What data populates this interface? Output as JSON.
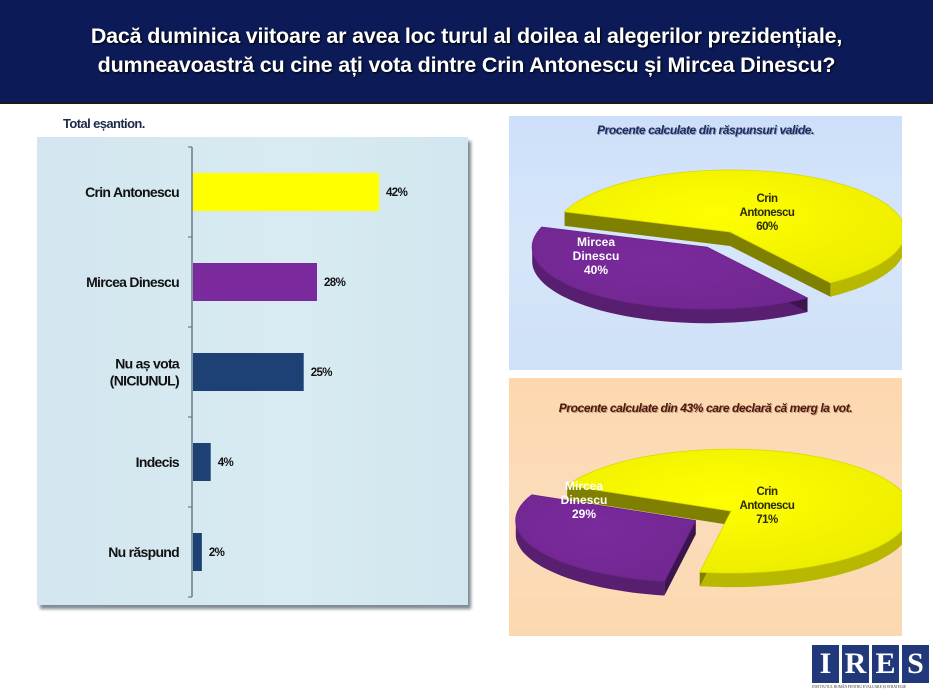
{
  "header": {
    "title_line1": "Dacă duminica viitoare ar avea loc turul al doilea al alegerilor prezidențiale,",
    "title_line2": "dumneavoastră cu cine ați vota dintre Crin Antonescu și Mircea Dinescu?"
  },
  "logo": {
    "letters": [
      "I",
      "R",
      "E",
      "S"
    ],
    "tagline": "INSTITUTUL ROMÂN PENTRU EVALUARE ȘI STRATEGIE"
  },
  "colors": {
    "header_bg": "#0c1b58",
    "antonescu": "#ffff00",
    "dinescu": "#7a2a9c",
    "other": "#1e4175"
  },
  "chart_data": [
    {
      "type": "bar",
      "orientation": "horizontal",
      "title": "Total eșantion.",
      "categories": [
        "Crin Antonescu",
        "Mircea Dinescu",
        "Nu aș vota\n(NICIUNUL)",
        "Indecis",
        "Nu răspund"
      ],
      "category_lines": [
        [
          "Crin Antonescu"
        ],
        [
          "Mircea Dinescu"
        ],
        [
          "Nu aș vota",
          "(NICIUNUL)"
        ],
        [
          "Indecis"
        ],
        [
          "Nu răspund"
        ]
      ],
      "values": [
        42,
        28,
        25,
        4,
        2
      ],
      "value_labels": [
        "42%",
        "28%",
        "25%",
        "4%",
        "2%"
      ],
      "bar_colors": [
        "#ffff00",
        "#7a2a9c",
        "#1e4175",
        "#1e4175",
        "#1e4175"
      ],
      "xlim": [
        0,
        50
      ],
      "grid": false,
      "legend": "none"
    },
    {
      "type": "pie",
      "style": "3d-exploded",
      "title": "Procente calculate din răspunsuri valide.",
      "slices": [
        {
          "name": "Crin Antonescu",
          "label_lines": [
            "Crin",
            "Antonescu",
            "60%"
          ],
          "value": 60,
          "color": "#ffff00"
        },
        {
          "name": "Mircea Dinescu",
          "label_lines": [
            "Mircea",
            "Dinescu",
            "40%"
          ],
          "value": 40,
          "color": "#7a2a9c"
        }
      ],
      "legend": "none"
    },
    {
      "type": "pie",
      "style": "3d-exploded",
      "title": "Procente calculate din 43% care declară că merg la vot.",
      "slices": [
        {
          "name": "Crin Antonescu",
          "label_lines": [
            "Crin",
            "Antonescu",
            "71%"
          ],
          "value": 71,
          "color": "#ffff00"
        },
        {
          "name": "Mircea Dinescu",
          "label_lines": [
            "Mircea",
            "Dinescu",
            "29%"
          ],
          "value": 29,
          "color": "#7a2a9c"
        }
      ],
      "legend": "none"
    }
  ]
}
